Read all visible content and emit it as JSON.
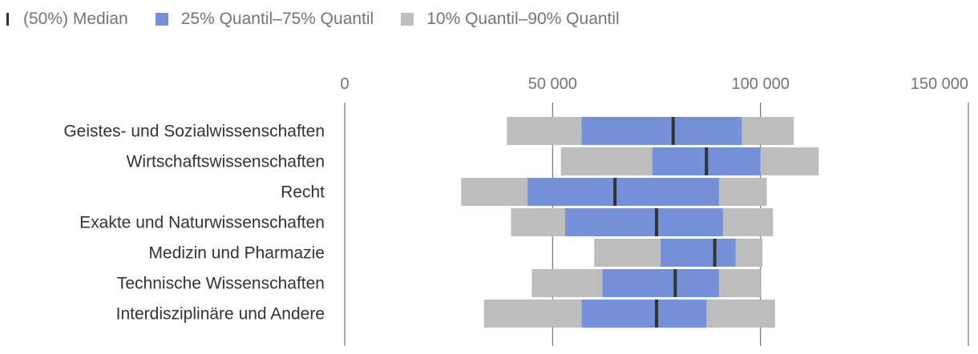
{
  "legend": {
    "median": "(50%) Median",
    "iqr": "25% Quantil–75% Quantil",
    "outer": "10% Quantil–90% Quantil"
  },
  "colors": {
    "iqr": "#7591da",
    "outer": "#bdbdbd",
    "median": "#333333",
    "grid": "#757575"
  },
  "chart_data": {
    "type": "bar",
    "orientation": "horizontal",
    "xlim": [
      0,
      150000
    ],
    "ticks": [
      0,
      50000,
      100000,
      150000
    ],
    "tick_labels": [
      "0",
      "50 000",
      "100 000",
      "150 000"
    ],
    "categories": [
      "Geistes- und Sozialwissenschaften",
      "Wirtschaftswissenschaften",
      "Recht",
      "Exakte und Naturwissenschaften",
      "Medizin und Pharmazie",
      "Technische Wissenschaften",
      "Interdisziplinäre und Andere"
    ],
    "series": [
      {
        "name": "10% Quantil–90% Quantil",
        "low": [
          39000,
          52000,
          28000,
          40000,
          60000,
          45000,
          33500
        ],
        "high": [
          108000,
          114000,
          101500,
          103000,
          100500,
          100000,
          103500
        ]
      },
      {
        "name": "25% Quantil–75% Quantil",
        "low": [
          57000,
          74000,
          44000,
          53000,
          76000,
          62000,
          57000
        ],
        "high": [
          95500,
          100000,
          90000,
          91000,
          94000,
          90000,
          87000
        ]
      },
      {
        "name": "(50%) Median",
        "values": [
          79000,
          87000,
          65000,
          75000,
          89000,
          79500,
          75000
        ]
      }
    ],
    "grid": true,
    "legend_position": "top-left"
  }
}
